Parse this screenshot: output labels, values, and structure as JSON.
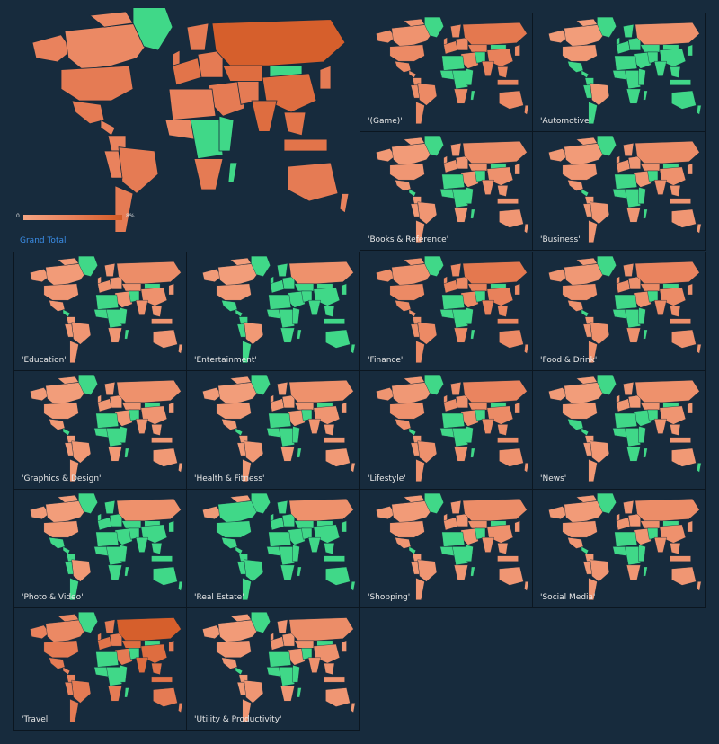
{
  "colors": {
    "background": "#172b3d",
    "ocean": "#172b3d",
    "zero": "#40d888",
    "low": "#f5a583",
    "mid": "#e8805a",
    "high": "#d35a25",
    "caption": "#e8e8e8",
    "grand_caption": "#3b8ee8"
  },
  "main_map": {
    "caption": "Grand Total",
    "legend_min": "0",
    "legend_max": "8%",
    "intensity": 0.85,
    "green_share": 0.15
  },
  "panels": [
    {
      "label": "'(Game)'",
      "intensity": 0.55,
      "green_share": 0.25
    },
    {
      "label": "'Automotive'",
      "intensity": 0.25,
      "green_share": 0.65
    },
    {
      "label": "'Books & Reference'",
      "intensity": 0.3,
      "green_share": 0.3
    },
    {
      "label": "'Business'",
      "intensity": 0.3,
      "green_share": 0.3
    },
    {
      "label": "'Education'",
      "intensity": 0.3,
      "green_share": 0.3
    },
    {
      "label": "'Entertainment'",
      "intensity": 0.25,
      "green_share": 0.7
    },
    {
      "label": "'Finance'",
      "intensity": 0.55,
      "green_share": 0.25
    },
    {
      "label": "'Food & Drink'",
      "intensity": 0.4,
      "green_share": 0.3
    },
    {
      "label": "'Graphics & Design'",
      "intensity": 0.25,
      "green_share": 0.3
    },
    {
      "label": "'Health & Fitness'",
      "intensity": 0.25,
      "green_share": 0.3
    },
    {
      "label": "'Lifestyle'",
      "intensity": 0.4,
      "green_share": 0.3
    },
    {
      "label": "'News'",
      "intensity": 0.25,
      "green_share": 0.35
    },
    {
      "label": "'Photo & Video'",
      "intensity": 0.25,
      "green_share": 0.7
    },
    {
      "label": "'Real Estate'",
      "intensity": 0.25,
      "green_share": 0.85
    },
    {
      "label": "'Shopping'",
      "intensity": 0.3,
      "green_share": 0.3
    },
    {
      "label": "'Social Media'",
      "intensity": 0.3,
      "green_share": 0.3
    },
    {
      "label": "'Travel'",
      "intensity": 0.85,
      "green_share": 0.25
    },
    {
      "label": "'Utility & Productivity'",
      "intensity": 0.3,
      "green_share": 0.3
    }
  ]
}
